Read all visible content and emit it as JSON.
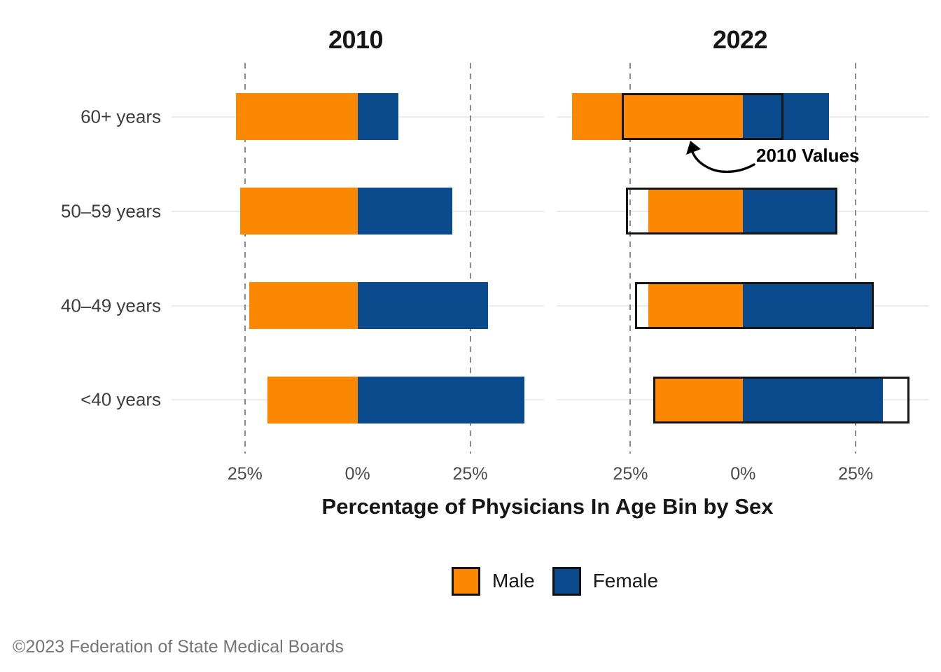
{
  "figure": {
    "footer": "©2023 Federation of State Medical Boards",
    "annotation_label": "2010 Values"
  },
  "legend": {
    "items": [
      {
        "label": "Male",
        "color": "#FB8800"
      },
      {
        "label": "Female",
        "color": "#0A4A8D"
      }
    ]
  },
  "chart_data": {
    "type": "bar",
    "variant": "diverging stacked horizontal bars (male left, female right), faceted by year, with 2010-value outline overlay on 2022 facet",
    "title": "",
    "xlabel": "Percentage of Physicians In Age Bin by Sex",
    "ylabel": "",
    "categories": [
      "60+ years",
      "50–59 years",
      "40–49 years",
      "<40 years"
    ],
    "x_axis": {
      "tick_labels": [
        "25%",
        "0%",
        "25%"
      ],
      "tick_values": [
        -25,
        0,
        25
      ],
      "xlim": [
        -41,
        41
      ],
      "units": "percent"
    },
    "facets": [
      {
        "title": "2010",
        "series": [
          {
            "name": "Male",
            "values": [
              27,
              26,
              24,
              20
            ]
          },
          {
            "name": "Female",
            "values": [
              9,
              21,
              29,
              37
            ]
          }
        ]
      },
      {
        "title": "2022",
        "series": [
          {
            "name": "Male",
            "values": [
              38,
              21,
              21,
              20
            ]
          },
          {
            "name": "Female",
            "values": [
              19,
              21,
              29,
              31
            ]
          }
        ],
        "outline_overlay": {
          "name": "2010 Values",
          "male": [
            27,
            26,
            24,
            20
          ],
          "female": [
            9,
            21,
            29,
            37
          ]
        }
      }
    ],
    "legend_position": "bottom",
    "grid": "dashed vertical gridlines at ±25%; light gray horizontal line per category row"
  },
  "colors": {
    "male": "#FB8800",
    "female": "#0A4A8D",
    "outline": "#151515",
    "dashed_grid": "#8C8C8C",
    "row_line": "#EBEBEB",
    "category_text": "#3D3D3D",
    "tick_text": "#4A4A4A",
    "title_text": "#161616",
    "footer_text": "#757575",
    "background": "#FFFFFF"
  }
}
